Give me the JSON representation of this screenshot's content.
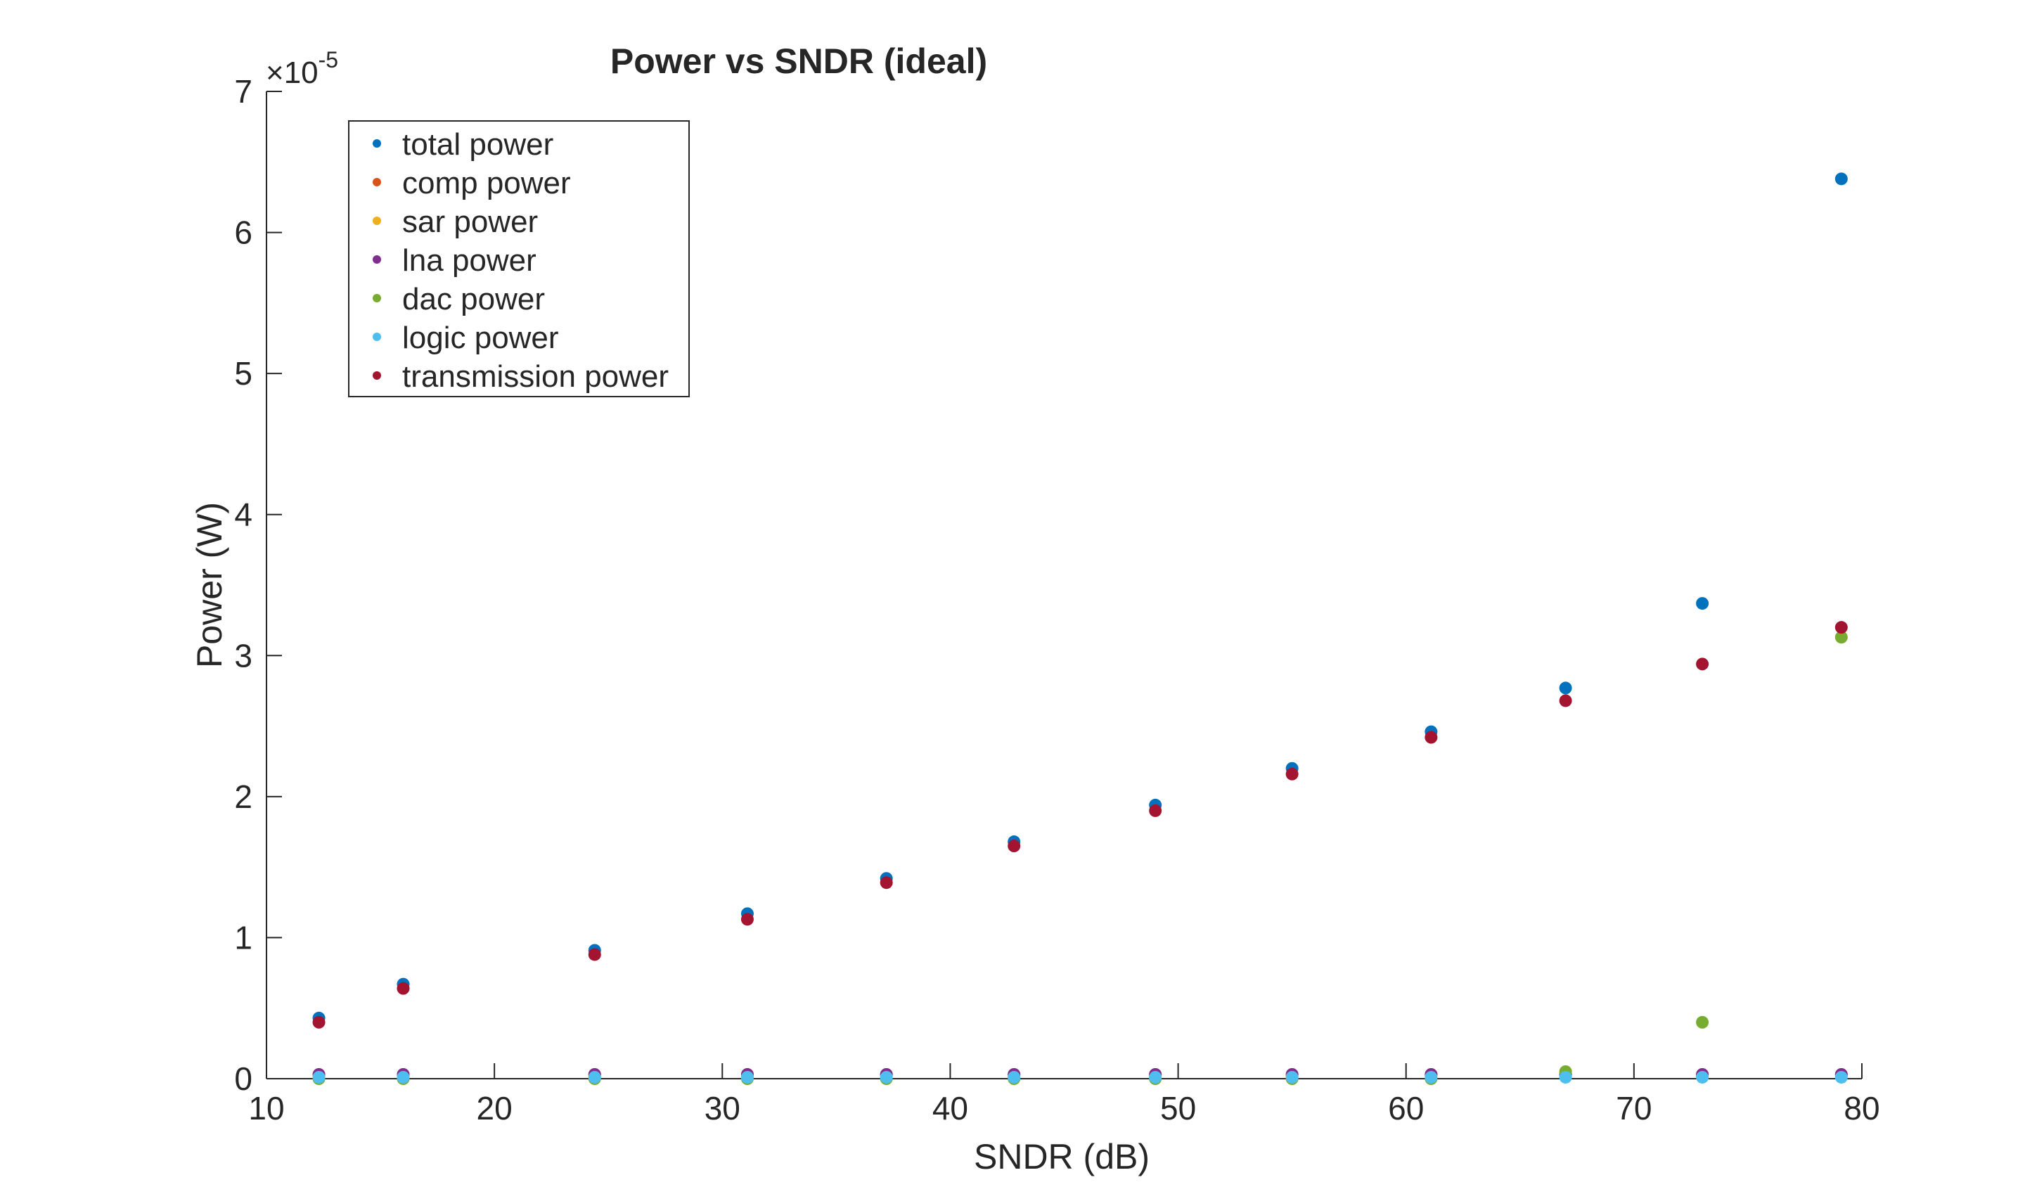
{
  "chart_data": {
    "type": "scatter",
    "title": "Power vs SNDR (ideal)",
    "xlabel": "SNDR (dB)",
    "ylabel": "Power (W)",
    "y_exponent_label": "×10",
    "y_exponent_power": "-5",
    "xlim": [
      10,
      80
    ],
    "ylim": [
      0,
      7
    ],
    "xticks": [
      10,
      20,
      30,
      40,
      50,
      60,
      70,
      80
    ],
    "yticks": [
      0,
      1,
      2,
      3,
      4,
      5,
      6,
      7
    ],
    "grid": false,
    "legend_position": "top-left",
    "x": [
      12.3,
      16.0,
      24.4,
      31.1,
      37.2,
      42.8,
      49.0,
      55.0,
      61.1,
      67.0,
      73.0,
      79.1
    ],
    "series": [
      {
        "name": "total power",
        "color": "#0072BD",
        "values": [
          0.43,
          0.67,
          0.91,
          1.17,
          1.42,
          1.68,
          1.94,
          2.2,
          2.46,
          2.77,
          3.37,
          6.38
        ]
      },
      {
        "name": "comp power",
        "color": "#D95319",
        "values": [
          0.03,
          0.03,
          0.03,
          0.03,
          0.03,
          0.03,
          0.03,
          0.03,
          0.03,
          0.03,
          0.03,
          0.03
        ]
      },
      {
        "name": "sar power",
        "color": "#EDB120",
        "values": [
          0.02,
          0.02,
          0.02,
          0.02,
          0.02,
          0.02,
          0.02,
          0.02,
          0.02,
          0.02,
          0.02,
          0.02
        ]
      },
      {
        "name": "lna power",
        "color": "#7E2F8E",
        "values": [
          0.03,
          0.03,
          0.03,
          0.03,
          0.03,
          0.03,
          0.03,
          0.03,
          0.03,
          0.03,
          0.03,
          0.03
        ]
      },
      {
        "name": "dac power",
        "color": "#77AC30",
        "values": [
          0.0,
          0.0,
          0.0,
          0.0,
          0.0,
          0.0,
          0.0,
          0.0,
          0.0,
          0.05,
          0.4,
          3.13
        ]
      },
      {
        "name": "logic power",
        "color": "#4DBEEE",
        "values": [
          0.01,
          0.01,
          0.01,
          0.01,
          0.01,
          0.01,
          0.01,
          0.01,
          0.01,
          0.01,
          0.01,
          0.01
        ]
      },
      {
        "name": "transmission power",
        "color": "#A2142F",
        "values": [
          0.4,
          0.64,
          0.88,
          1.13,
          1.39,
          1.65,
          1.9,
          2.16,
          2.42,
          2.68,
          2.94,
          3.2
        ]
      }
    ]
  }
}
